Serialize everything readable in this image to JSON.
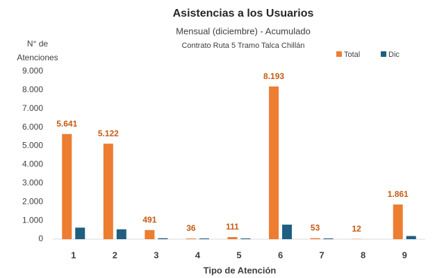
{
  "chart_data": {
    "type": "bar",
    "title": "Asistencias a los Usuarios",
    "subtitle": "Mensual (diciembre) - Acumulado",
    "subtitle2": "Contrato Ruta 5 Tramo Talca Chillán",
    "ylabel": [
      "N° de",
      "Atenciones"
    ],
    "xlabel": "Tipo de Atención",
    "categories": [
      "1",
      "2",
      "3",
      "4",
      "5",
      "6",
      "7",
      "8",
      "9"
    ],
    "series": [
      {
        "name": "Total",
        "color": "#ed7d31",
        "values": [
          5641,
          5122,
          491,
          36,
          111,
          8193,
          53,
          12,
          1861
        ],
        "value_labels": [
          "5.641",
          "5.122",
          "491",
          "36",
          "111",
          "8.193",
          "53",
          "12",
          "1.861"
        ]
      },
      {
        "name": "Dic",
        "color": "#1f5f7f",
        "values": [
          620,
          530,
          50,
          40,
          40,
          780,
          40,
          0,
          170
        ]
      }
    ],
    "ylim": [
      0,
      9000
    ],
    "yticks": [
      0,
      {
        "value": 1000,
        "label": "1.000"
      },
      {
        "value": 2000,
        "label": "2.000"
      },
      {
        "value": 3000,
        "label": "3.000"
      },
      {
        "value": 4000,
        "label": "4.000"
      },
      {
        "value": 5000,
        "label": "5.000"
      },
      {
        "value": 6000,
        "label": "6.000"
      },
      {
        "value": 7000,
        "label": "7.000"
      },
      {
        "value": 8000,
        "label": "8.000"
      },
      {
        "value": 9000,
        "label": "9.000"
      }
    ],
    "legend": "top-right",
    "label_color": "#c55a11"
  }
}
